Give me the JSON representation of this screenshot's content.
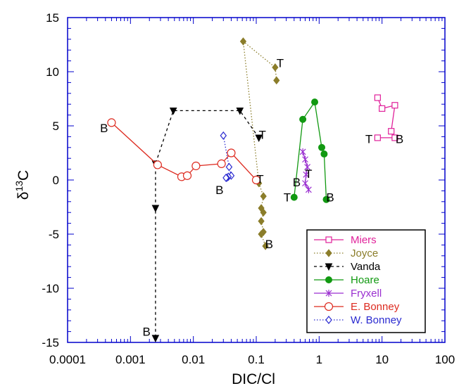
{
  "chart_data": {
    "type": "scatter",
    "title": "",
    "xlabel": "DIC/Cl",
    "ylabel": "δ13C",
    "ylabel_main": "δ",
    "ylabel_sup": "13",
    "ylabel_tail": "C",
    "xscale": "log",
    "xlim": [
      0.0001,
      100
    ],
    "ylim": [
      -15,
      15
    ],
    "xticks": [
      "0.0001",
      "0.001",
      "0.01",
      "0.1",
      "1",
      "10",
      "100"
    ],
    "yticks": [
      "15",
      "10",
      "5",
      "0",
      "-5",
      "-10",
      "-15"
    ],
    "grid": false,
    "legend_position": "bottom-right",
    "frame_color": "#0000cc",
    "series": [
      {
        "name": "Miers",
        "color": "#e0209a",
        "marker": "square-open",
        "line": "solid",
        "x": [
          8.5,
          10,
          16,
          14,
          16,
          8.5
        ],
        "y": [
          7.6,
          6.6,
          6.9,
          4.5,
          3.9,
          3.9
        ]
      },
      {
        "name": "Joyce",
        "color": "#8b7d2a",
        "marker": "diamond-filled",
        "line": "dotted",
        "x": [
          0.21,
          0.2,
          0.062,
          0.11,
          0.13,
          0.12,
          0.13,
          0.12,
          0.13,
          0.12,
          0.14
        ],
        "y": [
          9.2,
          10.4,
          12.8,
          -0.3,
          -1.5,
          -2.6,
          -3.0,
          -3.8,
          -4.8,
          -5.0,
          -6.1
        ]
      },
      {
        "name": "Vanda",
        "color": "#000000",
        "marker": "triangle-down-filled",
        "line": "dashed",
        "x": [
          0.11,
          0.055,
          0.0048,
          0.0025,
          0.0025,
          0.0025
        ],
        "y": [
          3.9,
          6.4,
          6.4,
          1.5,
          -2.6,
          -14.6
        ]
      },
      {
        "name": "Hoare",
        "color": "#119911",
        "marker": "circle-filled",
        "line": "solid",
        "x": [
          0.4,
          0.55,
          0.85,
          1.1,
          1.2,
          1.3
        ],
        "y": [
          -1.6,
          5.6,
          7.2,
          3.0,
          2.4,
          -1.8
        ]
      },
      {
        "name": "Fryxell",
        "color": "#9a2fd0",
        "marker": "x",
        "line": "solid",
        "x": [
          0.55,
          0.6,
          0.65,
          0.62,
          0.6,
          0.68
        ],
        "y": [
          2.6,
          1.9,
          1.2,
          0.5,
          -0.3,
          -0.9
        ]
      },
      {
        "name": "E. Bonney",
        "color": "#dd2a1f",
        "marker": "circle-open",
        "line": "solid",
        "x": [
          0.0005,
          0.0027,
          0.0065,
          0.008,
          0.011,
          0.028,
          0.04,
          0.1
        ],
        "y": [
          5.3,
          1.4,
          0.3,
          0.4,
          1.3,
          1.5,
          2.5,
          0.0
        ]
      },
      {
        "name": "W. Bonney",
        "color": "#2a2ad0",
        "marker": "diamond-open",
        "line": "dotted",
        "x": [
          0.03,
          0.037,
          0.04,
          0.036,
          0.034,
          0.033
        ],
        "y": [
          4.1,
          1.2,
          0.4,
          0.3,
          0.2,
          0.2
        ]
      }
    ],
    "annotations": [
      {
        "text": "T",
        "x": 0.24,
        "y": 10.8
      },
      {
        "text": "T",
        "x": 0.125,
        "y": 4.2
      },
      {
        "text": "T",
        "x": 0.115,
        "y": 0.1
      },
      {
        "text": "B",
        "x": 0.16,
        "y": -5.9
      },
      {
        "text": "B",
        "x": 0.00038,
        "y": 4.8
      },
      {
        "text": "B",
        "x": 0.0018,
        "y": -14.0
      },
      {
        "text": "B",
        "x": 0.026,
        "y": -0.9
      },
      {
        "text": "T",
        "x": 0.31,
        "y": -1.6
      },
      {
        "text": "B",
        "x": 0.44,
        "y": -0.2
      },
      {
        "text": "T",
        "x": 0.68,
        "y": 0.6
      },
      {
        "text": "B",
        "x": 1.5,
        "y": -1.6
      },
      {
        "text": "T",
        "x": 6.2,
        "y": 3.8
      },
      {
        "text": "B",
        "x": 19,
        "y": 3.8
      }
    ]
  }
}
